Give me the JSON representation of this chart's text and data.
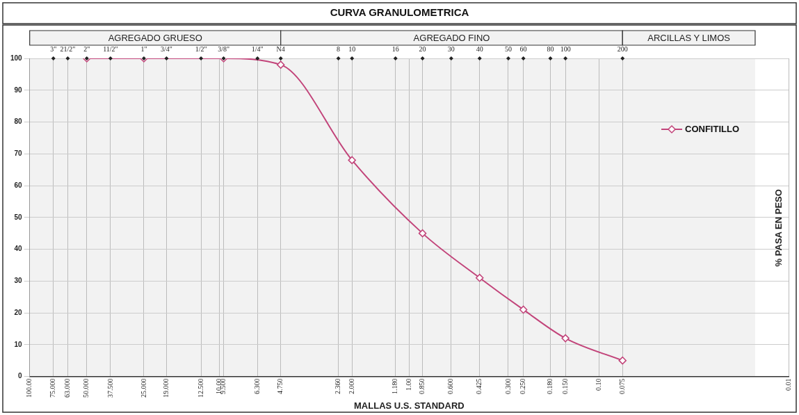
{
  "chart_data": {
    "type": "line",
    "title": "CURVA GRANULOMETRICA",
    "xlabel": "MALLAS U.S. STANDARD",
    "ylabel": "% PASA EN PESO",
    "log": "x",
    "x": [
      50,
      25,
      9.5,
      4.75,
      2,
      0.85,
      0.425,
      0.25,
      0.15,
      0.075
    ],
    "series": [
      {
        "name": "CONFITILLO",
        "color": "#c2447a",
        "values": [
          100,
          100,
          100,
          98,
          68,
          45,
          31,
          21,
          12,
          5
        ]
      }
    ],
    "xlim": [
      100,
      0.01
    ],
    "xticks": [
      {
        "value": 100,
        "label": "100.00"
      },
      {
        "value": 75,
        "label": "75.000"
      },
      {
        "value": 63,
        "label": "63.000"
      },
      {
        "value": 50,
        "label": "50.000"
      },
      {
        "value": 37.5,
        "label": "37.500"
      },
      {
        "value": 25,
        "label": "25.000"
      },
      {
        "value": 19,
        "label": "19.000"
      },
      {
        "value": 12.5,
        "label": "12.500"
      },
      {
        "value": 10,
        "label": "10.00"
      },
      {
        "value": 9.5,
        "label": "9.500"
      },
      {
        "value": 6.3,
        "label": "6.300"
      },
      {
        "value": 4.75,
        "label": "4.750"
      },
      {
        "value": 2.36,
        "label": "2.360"
      },
      {
        "value": 2,
        "label": "2.000"
      },
      {
        "value": 1.18,
        "label": "1.180"
      },
      {
        "value": 1,
        "label": "1.00"
      },
      {
        "value": 0.85,
        "label": "0.850"
      },
      {
        "value": 0.6,
        "label": "0.600"
      },
      {
        "value": 0.425,
        "label": "0.425"
      },
      {
        "value": 0.3,
        "label": "0.300"
      },
      {
        "value": 0.25,
        "label": "0.250"
      },
      {
        "value": 0.18,
        "label": "0.180"
      },
      {
        "value": 0.15,
        "label": "0.150"
      },
      {
        "value": 0.1,
        "label": "0.10"
      },
      {
        "value": 0.075,
        "label": "0.075"
      },
      {
        "value": 0.01,
        "label": "0.01"
      }
    ],
    "annotations": [
      {
        "text": "3\"",
        "x": 75,
        "y": 100
      },
      {
        "text": "21/2\"",
        "x": 63,
        "y": 100
      },
      {
        "text": "2\"",
        "x": 50,
        "y": 100
      },
      {
        "text": "11/2\"",
        "x": 37.5,
        "y": 100
      },
      {
        "text": "1\"",
        "x": 25,
        "y": 100
      },
      {
        "text": "3/4\"",
        "x": 19,
        "y": 100
      },
      {
        "text": "1/2\"",
        "x": 12.5,
        "y": 100
      },
      {
        "text": "3/8\"",
        "x": 9.5,
        "y": 100
      },
      {
        "text": "1/4\"",
        "x": 6.3,
        "y": 100
      },
      {
        "text": "N4",
        "x": 4.75,
        "y": 100
      },
      {
        "text": "8",
        "x": 2.36,
        "y": 100
      },
      {
        "text": "10",
        "x": 2,
        "y": 100
      },
      {
        "text": "16",
        "x": 1.18,
        "y": 100
      },
      {
        "text": "20",
        "x": 0.85,
        "y": 100
      },
      {
        "text": "30",
        "x": 0.6,
        "y": 100
      },
      {
        "text": "40",
        "x": 0.425,
        "y": 100
      },
      {
        "text": "50",
        "x": 0.3,
        "y": 100
      },
      {
        "text": "60",
        "x": 0.25,
        "y": 100
      },
      {
        "text": "80",
        "x": 0.18,
        "y": 100
      },
      {
        "text": "100",
        "x": 0.15,
        "y": 100
      },
      {
        "text": "200",
        "x": 0.075,
        "y": 100
      }
    ],
    "ylim": [
      0,
      100
    ],
    "yticks": [
      0,
      10,
      20,
      30,
      40,
      50,
      60,
      70,
      80,
      90,
      100
    ],
    "bands": [
      {
        "axis": "x",
        "from": 100,
        "to": 4.75,
        "label": "AGREGADO GRUESO",
        "color": "#f2f2f2"
      },
      {
        "axis": "x",
        "from": 4.75,
        "to": 0.075,
        "label": "AGREGADO FINO",
        "color": "#f2f2f2"
      },
      {
        "axis": "x",
        "from": 0.075,
        "to": 0.015,
        "label": "ARCILLAS Y LIMOS",
        "color": "#f2f2f2"
      }
    ],
    "grid": true,
    "legend": "top right",
    "marker": "diamond",
    "line_style": "solid"
  }
}
